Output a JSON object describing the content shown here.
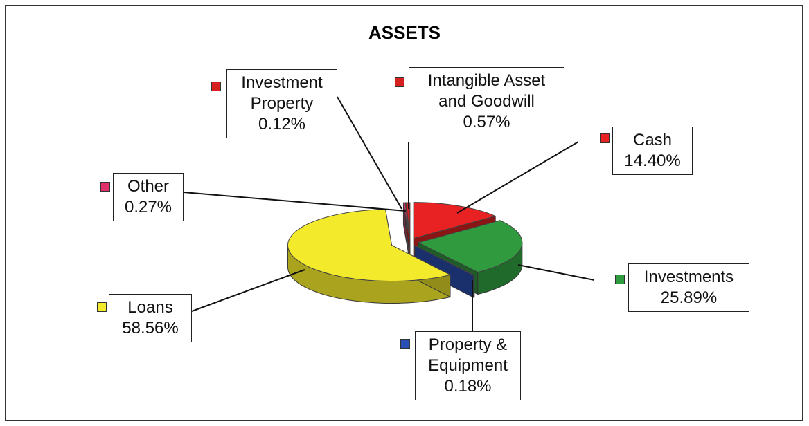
{
  "chart_data": {
    "type": "pie",
    "title": "ASSETS",
    "categories": [
      "Cash",
      "Investments",
      "Property & Equipment",
      "Loans",
      "Other",
      "Investment Property",
      "Intangible Asset and Goodwill"
    ],
    "values": [
      14.4,
      25.89,
      0.18,
      58.56,
      0.27,
      0.12,
      0.57
    ],
    "value_labels": [
      "14.40%",
      "25.89%",
      "0.18%",
      "58.56%",
      "0.27%",
      "0.12%",
      "0.57%"
    ],
    "colors": [
      "#e82222",
      "#2f9a3e",
      "#2a50b4",
      "#f4ea2c",
      "#e0306c",
      "#d62020",
      "#d62020"
    ]
  }
}
